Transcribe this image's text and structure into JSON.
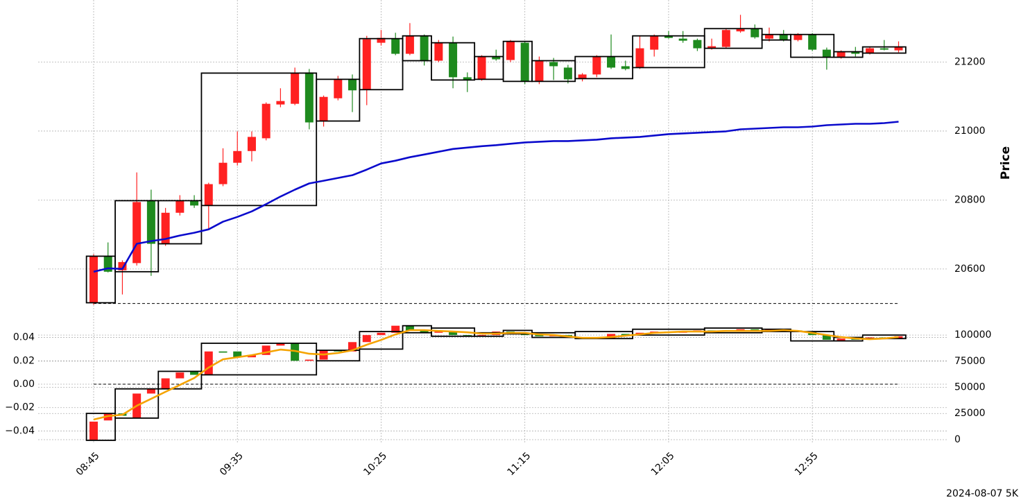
{
  "chart_data": [
    {
      "type": "candlestick",
      "ylabel": "Price",
      "yaxis_side": "right",
      "ylim": [
        20475,
        21380
      ],
      "yticks": [
        20600,
        20800,
        21000,
        21200
      ],
      "grid": true,
      "up_color": "#ff2121",
      "down_color": "#1e8a1e",
      "open": [
        20502,
        20637,
        20596,
        20617,
        20798,
        20673,
        20763,
        20798,
        20784,
        20846,
        20908,
        20942,
        20979,
        21077,
        21079,
        21170,
        21029,
        21095,
        21150,
        21120,
        21256,
        21268,
        21224,
        21276,
        21204,
        21256,
        21156,
        21150,
        21216,
        21206,
        21256,
        21144,
        21200,
        21184,
        21152,
        21164,
        21216,
        21188,
        21184,
        21236,
        21276,
        21268,
        21264,
        21240,
        21244,
        21289,
        21297,
        21268,
        21280,
        21264,
        21280,
        21236,
        21214,
        21230,
        21226,
        21240,
        21234
      ],
      "high": [
        20643,
        20677,
        20625,
        20880,
        20830,
        20777,
        20814,
        20814,
        20850,
        20950,
        20999,
        20999,
        21083,
        21124,
        21184,
        21180,
        21103,
        21160,
        21164,
        21276,
        21293,
        21285,
        21313,
        21280,
        21264,
        21274,
        21170,
        21220,
        21236,
        21264,
        21260,
        21216,
        21212,
        21192,
        21168,
        21220,
        21280,
        21204,
        21276,
        21280,
        21290,
        21290,
        21268,
        21268,
        21297,
        21337,
        21309,
        21300,
        21293,
        21284,
        21284,
        21242,
        21234,
        21244,
        21244,
        21264,
        21260
      ],
      "low": [
        20496,
        20590,
        20526,
        20610,
        20580,
        20667,
        20755,
        20777,
        20717,
        20840,
        20900,
        20912,
        20973,
        21069,
        21075,
        21005,
        21013,
        21089,
        21055,
        21075,
        21248,
        21220,
        21220,
        21190,
        21200,
        21124,
        21113,
        21146,
        21204,
        21200,
        21136,
        21136,
        21148,
        21138,
        21144,
        21156,
        21180,
        21176,
        21180,
        21216,
        21268,
        21256,
        21232,
        21236,
        21240,
        21285,
        21268,
        21260,
        21260,
        21260,
        21232,
        21178,
        21210,
        21216,
        21222,
        21234,
        21228
      ],
      "close": [
        20637,
        20592,
        20620,
        20794,
        20673,
        20763,
        20798,
        20784,
        20846,
        20908,
        20942,
        20983,
        21079,
        21087,
        21168,
        21025,
        21099,
        21150,
        21118,
        21266,
        21270,
        21224,
        21276,
        21204,
        21256,
        21156,
        21148,
        21216,
        21208,
        21260,
        21144,
        21204,
        21188,
        21150,
        21164,
        21216,
        21184,
        21180,
        21240,
        21276,
        21270,
        21262,
        21240,
        21246,
        21293,
        21297,
        21272,
        21280,
        21264,
        21280,
        21236,
        21214,
        21230,
        21224,
        21240,
        21236,
        21244
      ],
      "overlay": {
        "color": "#0a0acc",
        "values": [
          20592,
          20602,
          20600,
          20673,
          20681,
          20687,
          20697,
          20705,
          20715,
          20737,
          20751,
          20767,
          20788,
          20810,
          20830,
          20848,
          20856,
          20864,
          20872,
          20888,
          20906,
          20914,
          20924,
          20932,
          20940,
          20948,
          20952,
          20956,
          20959,
          20963,
          20967,
          20969,
          20971,
          20971,
          20973,
          20975,
          20979,
          20981,
          20983,
          20987,
          20991,
          20993,
          20995,
          20997,
          20999,
          21005,
          21007,
          21009,
          21011,
          21011,
          21013,
          21017,
          21019,
          21021,
          21021,
          21023,
          21027
        ]
      },
      "reference_line": 20500,
      "boxes": [
        {
          "start": 0,
          "end": 1,
          "low": 20502,
          "high": 20637
        },
        {
          "start": 2,
          "end": 4,
          "low": 20592,
          "high": 20798
        },
        {
          "start": 5,
          "end": 7,
          "low": 20673,
          "high": 20798
        },
        {
          "start": 8,
          "end": 15,
          "low": 20784,
          "high": 21168
        },
        {
          "start": 16,
          "end": 18,
          "low": 21029,
          "high": 21150
        },
        {
          "start": 19,
          "end": 21,
          "low": 21120,
          "high": 21268
        },
        {
          "start": 22,
          "end": 23,
          "low": 21204,
          "high": 21276
        },
        {
          "start": 24,
          "end": 26,
          "low": 21148,
          "high": 21256
        },
        {
          "start": 27,
          "end": 28,
          "low": 21150,
          "high": 21216
        },
        {
          "start": 29,
          "end": 30,
          "low": 21144,
          "high": 21260
        },
        {
          "start": 31,
          "end": 33,
          "low": 21144,
          "high": 21204
        },
        {
          "start": 34,
          "end": 37,
          "low": 21152,
          "high": 21216
        },
        {
          "start": 38,
          "end": 42,
          "low": 21184,
          "high": 21276
        },
        {
          "start": 43,
          "end": 46,
          "low": 21240,
          "high": 21297
        },
        {
          "start": 47,
          "end": 48,
          "low": 21264,
          "high": 21280
        },
        {
          "start": 49,
          "end": 51,
          "low": 21214,
          "high": 21280
        },
        {
          "start": 52,
          "end": 53,
          "low": 21214,
          "high": 21230
        },
        {
          "start": 54,
          "end": 56,
          "low": 21226,
          "high": 21244
        }
      ]
    },
    {
      "type": "candlestick",
      "categories": [
        "08:45",
        null,
        null,
        null,
        null,
        null,
        null,
        null,
        null,
        null,
        "09:35",
        null,
        null,
        null,
        null,
        null,
        null,
        null,
        null,
        null,
        "10:25",
        null,
        null,
        null,
        null,
        null,
        null,
        null,
        null,
        null,
        "11:15",
        null,
        null,
        null,
        null,
        null,
        null,
        null,
        null,
        null,
        "12:05",
        null,
        null,
        null,
        null,
        null,
        null,
        null,
        null,
        null,
        "12:55",
        null,
        null,
        null,
        null,
        null,
        null
      ],
      "ylim": [
        -0.051,
        0.051
      ],
      "yticks": [
        0.04,
        0.02,
        {
          "value": 0,
          "label": "0.00"
        },
        {
          "value": -0.02,
          "label": "−0.02"
        },
        {
          "value": -0.04,
          "label": "−0.04"
        }
      ],
      "y2lim": [
        -4000,
        110000
      ],
      "y2ticks": [
        0,
        25000,
        50000,
        75000,
        100000
      ],
      "grid": true,
      "up_color": "#ff2121",
      "down_color": "#1e8a1e",
      "open": [
        -0.048,
        -0.031,
        -0.025,
        -0.029,
        -0.008,
        -0.004,
        0.005,
        0.011,
        0.008,
        0.028,
        0.028,
        0.023,
        0.025,
        0.033,
        0.035,
        0.02,
        0.021,
        0.029,
        0.028,
        0.036,
        0.042,
        0.044,
        0.05,
        0.046,
        0.044,
        0.045,
        0.042,
        0.041,
        0.042,
        0.045,
        0.044,
        0.042,
        0.041,
        0.042,
        0.04,
        0.039,
        0.039,
        0.043,
        0.042,
        0.044,
        0.045,
        0.044,
        0.045,
        0.046,
        0.045,
        0.046,
        0.047,
        0.046,
        0.047,
        0.046,
        0.045,
        0.042,
        0.037,
        0.039,
        0.038,
        0.04,
        0.039
      ],
      "close": [
        -0.032,
        -0.025,
        -0.027,
        -0.008,
        -0.004,
        0.005,
        0.01,
        0.008,
        0.028,
        0.027,
        0.023,
        0.025,
        0.033,
        0.035,
        0.02,
        0.021,
        0.029,
        0.028,
        0.036,
        0.042,
        0.044,
        0.05,
        0.046,
        0.044,
        0.045,
        0.042,
        0.041,
        0.042,
        0.045,
        0.044,
        0.042,
        0.041,
        0.042,
        0.04,
        0.039,
        0.04,
        0.043,
        0.042,
        0.044,
        0.045,
        0.044,
        0.045,
        0.046,
        0.045,
        0.046,
        0.047,
        0.046,
        0.047,
        0.046,
        0.045,
        0.042,
        0.038,
        0.039,
        0.038,
        0.04,
        0.039,
        0.041
      ],
      "overlay": {
        "color": "#f5a300",
        "axis": "y2",
        "values": [
          19200,
          22500,
          23800,
          32400,
          39000,
          45700,
          52300,
          58900,
          68900,
          76800,
          78800,
          80800,
          83400,
          86100,
          84800,
          82100,
          81400,
          82800,
          85400,
          90700,
          95300,
          100600,
          104600,
          104600,
          103900,
          103300,
          102600,
          101300,
          101300,
          102000,
          102000,
          100600,
          100000,
          98600,
          97300,
          97300,
          98000,
          99300,
          100600,
          102000,
          102600,
          103300,
          103300,
          103300,
          103900,
          103900,
          103900,
          103900,
          104600,
          103900,
          102000,
          100000,
          98000,
          96700,
          96000,
          96700,
          98000
        ]
      },
      "reference_line": 0,
      "boxes": [
        {
          "start": 0,
          "end": 1,
          "low": -0.048,
          "high": -0.025
        },
        {
          "start": 2,
          "end": 4,
          "low": -0.029,
          "high": -0.004
        },
        {
          "start": 5,
          "end": 7,
          "low": -0.004,
          "high": 0.011
        },
        {
          "start": 8,
          "end": 15,
          "low": 0.008,
          "high": 0.035
        },
        {
          "start": 16,
          "end": 18,
          "low": 0.02,
          "high": 0.029
        },
        {
          "start": 19,
          "end": 21,
          "low": 0.03,
          "high": 0.045
        },
        {
          "start": 22,
          "end": 23,
          "low": 0.044,
          "high": 0.05
        },
        {
          "start": 24,
          "end": 26,
          "low": 0.041,
          "high": 0.048
        },
        {
          "start": 27,
          "end": 28,
          "low": 0.041,
          "high": 0.044
        },
        {
          "start": 29,
          "end": 30,
          "low": 0.043,
          "high": 0.046
        },
        {
          "start": 31,
          "end": 33,
          "low": 0.04,
          "high": 0.044
        },
        {
          "start": 34,
          "end": 37,
          "low": 0.039,
          "high": 0.045
        },
        {
          "start": 38,
          "end": 42,
          "low": 0.042,
          "high": 0.047
        },
        {
          "start": 43,
          "end": 46,
          "low": 0.044,
          "high": 0.048
        },
        {
          "start": 47,
          "end": 48,
          "low": 0.045,
          "high": 0.047
        },
        {
          "start": 49,
          "end": 51,
          "low": 0.037,
          "high": 0.045
        },
        {
          "start": 52,
          "end": 53,
          "low": 0.037,
          "high": 0.04
        },
        {
          "start": 54,
          "end": 56,
          "low": 0.039,
          "high": 0.042
        }
      ],
      "annotation": "2024-08-07 5K"
    }
  ]
}
